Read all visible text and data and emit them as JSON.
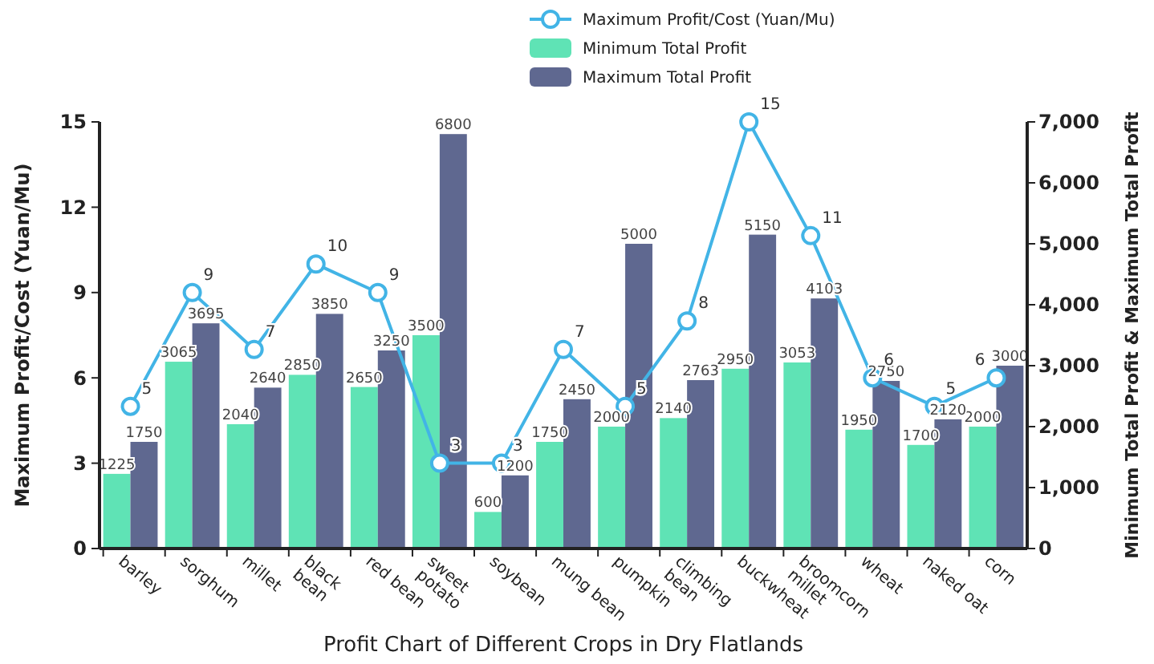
{
  "chart_data": {
    "type": "bar",
    "title": "Profit Chart of Different Crops in Dry Flatlands",
    "ylabel": "Maximum Profit/Cost (Yuan/Mu)",
    "y2label": "Minimum Total Profit & Maximum Total Profit",
    "categories": [
      "barley",
      "sorghum",
      "millet",
      "black bean",
      "red bean",
      "sweet potato",
      "soybean",
      "mung bean",
      "pumpkin",
      "climbing bean",
      "buckwheat",
      "broomcorn millet",
      "wheat",
      "naked oat",
      "corn"
    ],
    "series": [
      {
        "name": "Maximum Profit/Cost (Yuan/Mu)",
        "type": "line",
        "color": "#42b4e6",
        "marker": "circle",
        "values": [
          5,
          9,
          7,
          10,
          9,
          3,
          3,
          7,
          5,
          8,
          15,
          11,
          6,
          5,
          6
        ]
      },
      {
        "name": "Minimum Total Profit",
        "axis": "y2",
        "color": "#5fe3b5",
        "values": [
          1225,
          3065,
          2040,
          2850,
          2650,
          3500,
          600,
          1750,
          2000,
          2140,
          2950,
          3053,
          1950,
          1700,
          2000
        ]
      },
      {
        "name": "Maximum Total Profit",
        "axis": "y2",
        "color": "#5f6890",
        "values": [
          1750,
          3695,
          2640,
          3850,
          3250,
          6800,
          1200,
          2450,
          5000,
          2763,
          5150,
          4103,
          2750,
          2120,
          3000
        ]
      }
    ],
    "ylim": [
      0,
      15
    ],
    "yticks": [
      0,
      3,
      6,
      9,
      12,
      15
    ],
    "y2lim": [
      0,
      7000
    ],
    "y2ticks": [
      {
        "value": 0,
        "label": "0"
      },
      {
        "value": 1000,
        "label": "1,000"
      },
      {
        "value": 2000,
        "label": "2,000"
      },
      {
        "value": 3000,
        "label": "3,000"
      },
      {
        "value": 4000,
        "label": "4,000"
      },
      {
        "value": 5000,
        "label": "5,000"
      },
      {
        "value": 6000,
        "label": "6,000"
      },
      {
        "value": 7000,
        "label": "7,000"
      }
    ],
    "data_labels": true,
    "legend": "top",
    "grid": false
  }
}
